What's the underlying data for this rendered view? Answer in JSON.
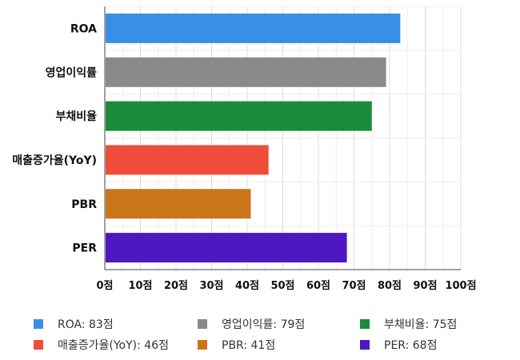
{
  "chart_data": {
    "type": "bar",
    "orientation": "horizontal",
    "categories": [
      "ROA",
      "영업이익률",
      "부채비율",
      "매출증가율(YoY)",
      "PBR",
      "PER"
    ],
    "values": [
      83,
      79,
      75,
      46,
      41,
      68
    ],
    "colors": [
      "#3a8ee6",
      "#8a8a8a",
      "#1b8b3a",
      "#ee4d3a",
      "#cc7418",
      "#4e18c0"
    ],
    "xlim": [
      0,
      100
    ],
    "x_ticks": [
      "0점",
      "10점",
      "20점",
      "30점",
      "40점",
      "50점",
      "60점",
      "70점",
      "80점",
      "90점",
      "100점"
    ],
    "grid": true,
    "legend_position": "bottom",
    "legend": [
      "ROA: 83점",
      "영업이익률: 79점",
      "부채비율: 75점",
      "매출증가율(YoY): 46점",
      "PBR: 41점",
      "PER: 68점"
    ],
    "title": "",
    "xlabel": "",
    "ylabel": ""
  }
}
